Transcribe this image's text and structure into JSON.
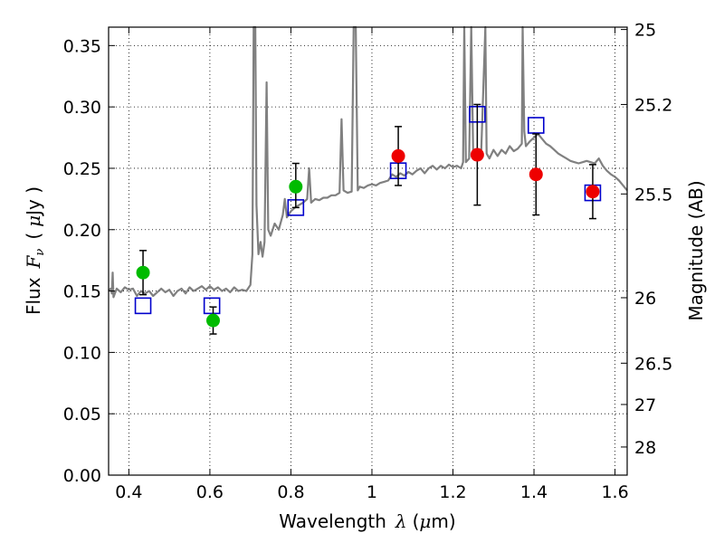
{
  "chart_data": {
    "type": "scatter",
    "xlabel_text": "Wavelength",
    "xlabel_symbol": "λ",
    "xlabel_unit_open": "(",
    "xlabel_unit_mu": "μ",
    "xlabel_unit_rest": "m)",
    "ylabel_text": "Flux",
    "ylabel_symbol": "F",
    "ylabel_sub": "ν",
    "ylabel_open": "(",
    "ylabel_mu": "μ",
    "ylabel_rest": "Jy )",
    "y2label": "Magnitude (AB)",
    "xlim": [
      0.35,
      1.63
    ],
    "ylim": [
      0.0,
      0.365
    ],
    "grid": true,
    "x_ticks": [
      {
        "v": 0.4,
        "label": "0.4"
      },
      {
        "v": 0.6,
        "label": "0.6"
      },
      {
        "v": 0.8,
        "label": "0.8"
      },
      {
        "v": 1.0,
        "label": "1"
      },
      {
        "v": 1.2,
        "label": "1.2"
      },
      {
        "v": 1.4,
        "label": "1.4"
      },
      {
        "v": 1.6,
        "label": "1.6"
      }
    ],
    "y_ticks": [
      {
        "v": 0.0,
        "label": "0.00"
      },
      {
        "v": 0.05,
        "label": "0.05"
      },
      {
        "v": 0.1,
        "label": "0.10"
      },
      {
        "v": 0.15,
        "label": "0.15"
      },
      {
        "v": 0.2,
        "label": "0.20"
      },
      {
        "v": 0.25,
        "label": "0.25"
      },
      {
        "v": 0.3,
        "label": "0.30"
      },
      {
        "v": 0.35,
        "label": "0.35"
      }
    ],
    "mag_ticks": [
      {
        "mag": 25,
        "label": "25"
      },
      {
        "mag": 25.2,
        "label": "25.2"
      },
      {
        "mag": 25.5,
        "label": "25.5"
      },
      {
        "mag": 26,
        "label": "26"
      },
      {
        "mag": 26.5,
        "label": "26.5"
      },
      {
        "mag": 27,
        "label": "27"
      },
      {
        "mag": 28,
        "label": "28"
      }
    ],
    "model_color": "#808080",
    "model_spectrum": [
      [
        0.35,
        0.15
      ],
      [
        0.355,
        0.152
      ],
      [
        0.358,
        0.148
      ],
      [
        0.36,
        0.165
      ],
      [
        0.362,
        0.145
      ],
      [
        0.37,
        0.152
      ],
      [
        0.38,
        0.149
      ],
      [
        0.39,
        0.153
      ],
      [
        0.4,
        0.151
      ],
      [
        0.41,
        0.152
      ],
      [
        0.42,
        0.146
      ],
      [
        0.43,
        0.15
      ],
      [
        0.44,
        0.148
      ],
      [
        0.45,
        0.15
      ],
      [
        0.46,
        0.146
      ],
      [
        0.47,
        0.149
      ],
      [
        0.48,
        0.152
      ],
      [
        0.49,
        0.149
      ],
      [
        0.5,
        0.151
      ],
      [
        0.51,
        0.146
      ],
      [
        0.52,
        0.15
      ],
      [
        0.53,
        0.152
      ],
      [
        0.54,
        0.148
      ],
      [
        0.55,
        0.153
      ],
      [
        0.56,
        0.15
      ],
      [
        0.57,
        0.152
      ],
      [
        0.58,
        0.154
      ],
      [
        0.59,
        0.151
      ],
      [
        0.6,
        0.154
      ],
      [
        0.61,
        0.151
      ],
      [
        0.62,
        0.153
      ],
      [
        0.63,
        0.15
      ],
      [
        0.64,
        0.152
      ],
      [
        0.65,
        0.149
      ],
      [
        0.66,
        0.153
      ],
      [
        0.67,
        0.15
      ],
      [
        0.68,
        0.151
      ],
      [
        0.69,
        0.15
      ],
      [
        0.7,
        0.155
      ],
      [
        0.705,
        0.18
      ],
      [
        0.708,
        0.365
      ],
      [
        0.712,
        0.365
      ],
      [
        0.715,
        0.22
      ],
      [
        0.72,
        0.18
      ],
      [
        0.725,
        0.19
      ],
      [
        0.73,
        0.178
      ],
      [
        0.735,
        0.19
      ],
      [
        0.74,
        0.32
      ],
      [
        0.744,
        0.2
      ],
      [
        0.75,
        0.195
      ],
      [
        0.76,
        0.205
      ],
      [
        0.77,
        0.2
      ],
      [
        0.78,
        0.212
      ],
      [
        0.785,
        0.225
      ],
      [
        0.79,
        0.21
      ],
      [
        0.8,
        0.215
      ],
      [
        0.81,
        0.218
      ],
      [
        0.82,
        0.22
      ],
      [
        0.83,
        0.222
      ],
      [
        0.84,
        0.225
      ],
      [
        0.845,
        0.25
      ],
      [
        0.85,
        0.222
      ],
      [
        0.86,
        0.225
      ],
      [
        0.87,
        0.224
      ],
      [
        0.88,
        0.226
      ],
      [
        0.89,
        0.226
      ],
      [
        0.9,
        0.228
      ],
      [
        0.91,
        0.228
      ],
      [
        0.92,
        0.23
      ],
      [
        0.925,
        0.29
      ],
      [
        0.93,
        0.232
      ],
      [
        0.94,
        0.23
      ],
      [
        0.95,
        0.231
      ],
      [
        0.955,
        0.365
      ],
      [
        0.96,
        0.365
      ],
      [
        0.965,
        0.232
      ],
      [
        0.97,
        0.235
      ],
      [
        0.98,
        0.234
      ],
      [
        0.99,
        0.236
      ],
      [
        1.0,
        0.237
      ],
      [
        1.01,
        0.236
      ],
      [
        1.02,
        0.238
      ],
      [
        1.03,
        0.239
      ],
      [
        1.04,
        0.24
      ],
      [
        1.05,
        0.245
      ],
      [
        1.06,
        0.243
      ],
      [
        1.07,
        0.246
      ],
      [
        1.08,
        0.244
      ],
      [
        1.09,
        0.247
      ],
      [
        1.1,
        0.245
      ],
      [
        1.11,
        0.248
      ],
      [
        1.12,
        0.25
      ],
      [
        1.13,
        0.246
      ],
      [
        1.14,
        0.25
      ],
      [
        1.15,
        0.252
      ],
      [
        1.16,
        0.249
      ],
      [
        1.17,
        0.252
      ],
      [
        1.18,
        0.25
      ],
      [
        1.19,
        0.253
      ],
      [
        1.2,
        0.251
      ],
      [
        1.21,
        0.252
      ],
      [
        1.22,
        0.25
      ],
      [
        1.225,
        0.255
      ],
      [
        1.228,
        0.365
      ],
      [
        1.232,
        0.255
      ],
      [
        1.24,
        0.258
      ],
      [
        1.245,
        0.365
      ],
      [
        1.25,
        0.26
      ],
      [
        1.26,
        0.262
      ],
      [
        1.27,
        0.265
      ],
      [
        1.28,
        0.365
      ],
      [
        1.283,
        0.262
      ],
      [
        1.29,
        0.258
      ],
      [
        1.3,
        0.265
      ],
      [
        1.31,
        0.26
      ],
      [
        1.32,
        0.265
      ],
      [
        1.33,
        0.262
      ],
      [
        1.34,
        0.268
      ],
      [
        1.35,
        0.264
      ],
      [
        1.36,
        0.266
      ],
      [
        1.37,
        0.27
      ],
      [
        1.372,
        0.365
      ],
      [
        1.376,
        0.28
      ],
      [
        1.38,
        0.268
      ],
      [
        1.39,
        0.272
      ],
      [
        1.4,
        0.275
      ],
      [
        1.41,
        0.278
      ],
      [
        1.42,
        0.274
      ],
      [
        1.43,
        0.27
      ],
      [
        1.44,
        0.268
      ],
      [
        1.45,
        0.265
      ],
      [
        1.46,
        0.262
      ],
      [
        1.47,
        0.26
      ],
      [
        1.48,
        0.258
      ],
      [
        1.49,
        0.256
      ],
      [
        1.5,
        0.255
      ],
      [
        1.51,
        0.254
      ],
      [
        1.52,
        0.255
      ],
      [
        1.53,
        0.256
      ],
      [
        1.54,
        0.255
      ],
      [
        1.55,
        0.254
      ],
      [
        1.56,
        0.258
      ],
      [
        1.57,
        0.252
      ],
      [
        1.58,
        0.248
      ],
      [
        1.59,
        0.245
      ],
      [
        1.6,
        0.243
      ],
      [
        1.61,
        0.24
      ],
      [
        1.62,
        0.236
      ],
      [
        1.63,
        0.232
      ]
    ],
    "model_photometry": {
      "color": "#0000cc",
      "points": [
        [
          0.435,
          0.138
        ],
        [
          0.605,
          0.138
        ],
        [
          0.812,
          0.218
        ],
        [
          1.065,
          0.248
        ],
        [
          1.26,
          0.294
        ],
        [
          1.405,
          0.285
        ],
        [
          1.545,
          0.23
        ]
      ]
    },
    "observed_optical": {
      "color": "#00bb00",
      "points": [
        {
          "x": 0.435,
          "y": 0.165,
          "err_lo": 0.018,
          "err_hi": 0.018
        },
        {
          "x": 0.608,
          "y": 0.126,
          "err_lo": 0.011,
          "err_hi": 0.011
        },
        {
          "x": 0.812,
          "y": 0.235,
          "err_lo": 0.017,
          "err_hi": 0.019
        }
      ]
    },
    "observed_nir": {
      "color": "#ee0000",
      "points": [
        {
          "x": 1.065,
          "y": 0.26,
          "err_lo": 0.024,
          "err_hi": 0.024
        },
        {
          "x": 1.26,
          "y": 0.261,
          "err_lo": 0.041,
          "err_hi": 0.041
        },
        {
          "x": 1.405,
          "y": 0.245,
          "err_lo": 0.033,
          "err_hi": 0.033
        },
        {
          "x": 1.545,
          "y": 0.231,
          "err_lo": 0.022,
          "err_hi": 0.022
        }
      ]
    }
  }
}
